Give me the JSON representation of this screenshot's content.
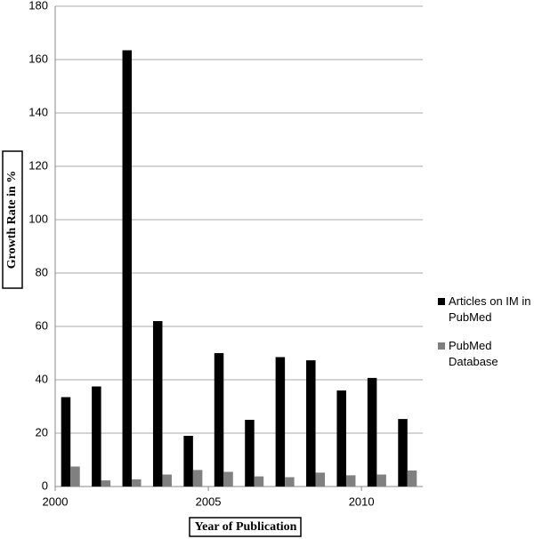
{
  "chart_data": {
    "type": "bar",
    "x_label": "Year of Publication",
    "y_label": "Growth Rate in %",
    "x": [
      2000.5,
      2001.5,
      2002.5,
      2003.5,
      2004.5,
      2005.5,
      2006.5,
      2007.5,
      2008.5,
      2009.5,
      2010.5,
      2011.5
    ],
    "series": [
      {
        "name": "Articles on IM in PubMed",
        "color": "#000000",
        "values": [
          33.5,
          37.5,
          163.5,
          62,
          19,
          50,
          25,
          48.5,
          47.3,
          36,
          40.7,
          25.3
        ]
      },
      {
        "name": "PubMed Database",
        "color": "#808080",
        "values": [
          7.5,
          2.3,
          2.7,
          4.5,
          6.2,
          5.5,
          3.8,
          3.5,
          5.2,
          4.2,
          4.5,
          6
        ]
      }
    ],
    "xlim": [
      2000,
      2012
    ],
    "xticks": [
      2000,
      2005,
      2010
    ],
    "ylim": [
      0,
      180
    ],
    "yticks": [
      0,
      20,
      40,
      60,
      80,
      100,
      120,
      140,
      160,
      180
    ],
    "grid": true,
    "legend": "right"
  }
}
